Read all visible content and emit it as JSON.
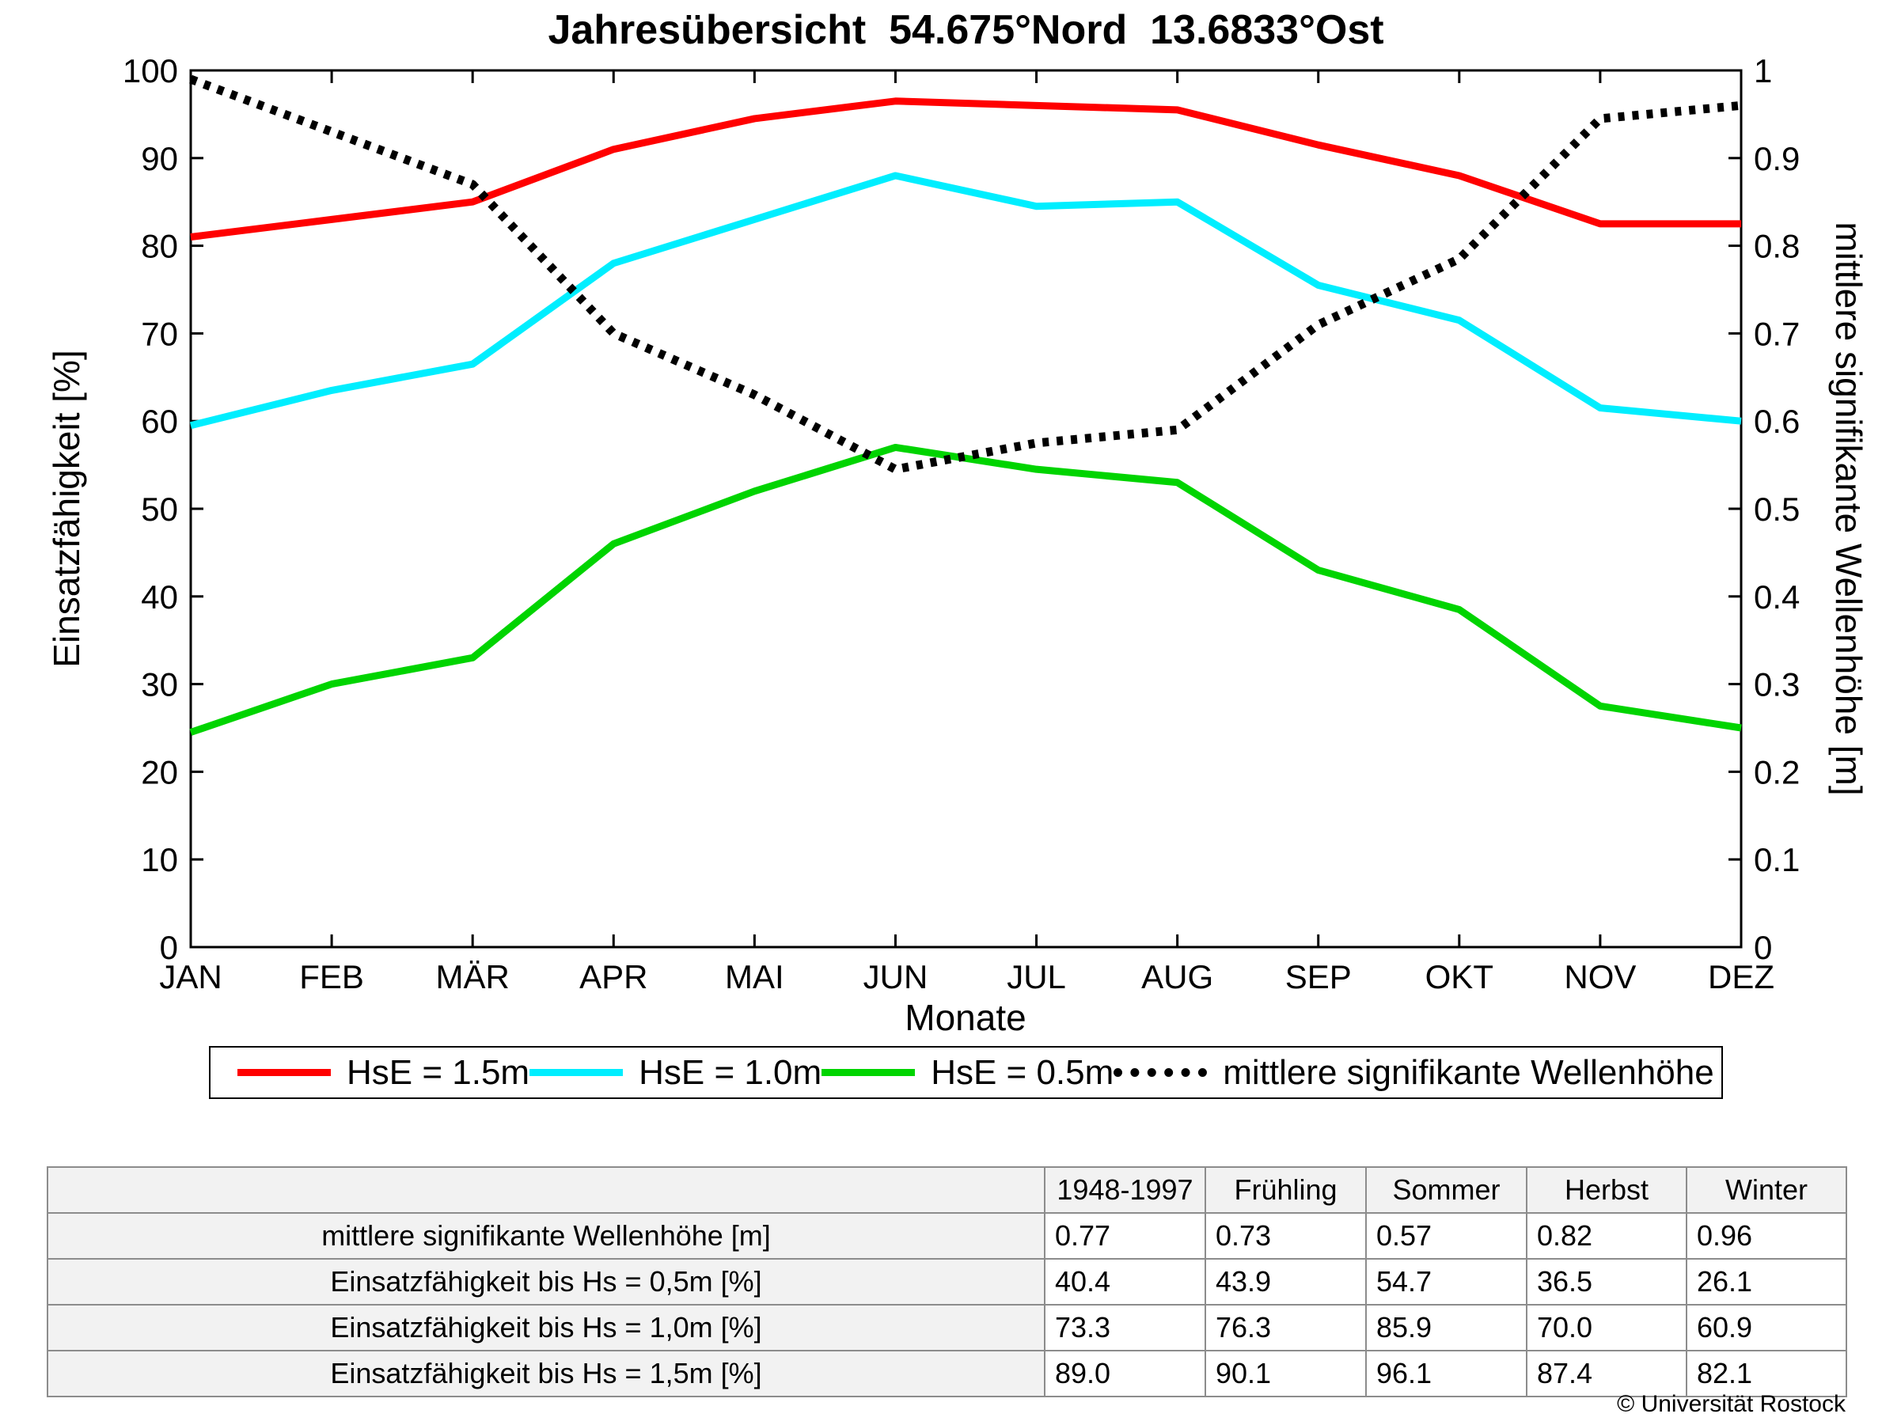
{
  "title": "Jahresübersicht  54.675°Nord  13.6833°Ost",
  "chart_data": {
    "type": "line",
    "x_categories": [
      "JAN",
      "FEB",
      "MÄR",
      "APR",
      "MAI",
      "JUN",
      "JUL",
      "AUG",
      "SEP",
      "OKT",
      "NOV",
      "DEZ"
    ],
    "xlabel": "Monate",
    "ylabel_left": "Einsatzfähigkeit [%]",
    "ylabel_right": "mittlere signifikante Wellenhöhe [m]",
    "ylim_left": [
      0,
      100
    ],
    "yticks_left": [
      0,
      10,
      20,
      30,
      40,
      50,
      60,
      70,
      80,
      90,
      100
    ],
    "ylim_right": [
      0,
      1
    ],
    "yticks_right": [
      0,
      0.1,
      0.2,
      0.3,
      0.4,
      0.5,
      0.6,
      0.7,
      0.8,
      0.9,
      1
    ],
    "grid": false,
    "legend_position": "bottom",
    "series": [
      {
        "name": "HsE = 1.5m",
        "axis": "left",
        "color": "#ff0000",
        "style": "solid",
        "values": [
          81,
          83,
          85,
          91,
          94.5,
          96.5,
          96,
          95.5,
          91.5,
          88,
          82.5,
          82.5
        ]
      },
      {
        "name": "HsE = 1.0m",
        "axis": "left",
        "color": "#00eeff",
        "style": "solid",
        "values": [
          59.5,
          63.5,
          66.5,
          78,
          83,
          88,
          84.5,
          85,
          75.5,
          71.5,
          61.5,
          60
        ]
      },
      {
        "name": "HsE = 0.5m",
        "axis": "left",
        "color": "#00d400",
        "style": "solid",
        "values": [
          24.5,
          30,
          33,
          46,
          52,
          57,
          54.5,
          53,
          43,
          38.5,
          27.5,
          25
        ]
      },
      {
        "name": "mittlere signifikante Wellenhöhe",
        "axis": "right",
        "color": "#000000",
        "style": "dotted",
        "values": [
          0.99,
          0.93,
          0.87,
          0.7,
          0.63,
          0.545,
          0.575,
          0.59,
          0.71,
          0.785,
          0.945,
          0.96
        ]
      }
    ]
  },
  "table": {
    "headers": [
      "",
      "1948-1997",
      "Frühling",
      "Sommer",
      "Herbst",
      "Winter"
    ],
    "rows": [
      {
        "label": "mittlere signifikante Wellenhöhe [m]",
        "values": [
          "0.77",
          "0.73",
          "0.57",
          "0.82",
          "0.96"
        ]
      },
      {
        "label": "Einsatzfähigkeit bis Hs = 0,5m [%]",
        "values": [
          "40.4",
          "43.9",
          "54.7",
          "36.5",
          "26.1"
        ]
      },
      {
        "label": "Einsatzfähigkeit bis Hs = 1,0m [%]",
        "values": [
          "73.3",
          "76.3",
          "85.9",
          "70.0",
          "60.9"
        ]
      },
      {
        "label": "Einsatzfähigkeit bis Hs = 1,5m [%]",
        "values": [
          "89.0",
          "90.1",
          "96.1",
          "87.4",
          "82.1"
        ]
      }
    ]
  },
  "footer": {
    "copyright": "© Universität Rostock"
  }
}
